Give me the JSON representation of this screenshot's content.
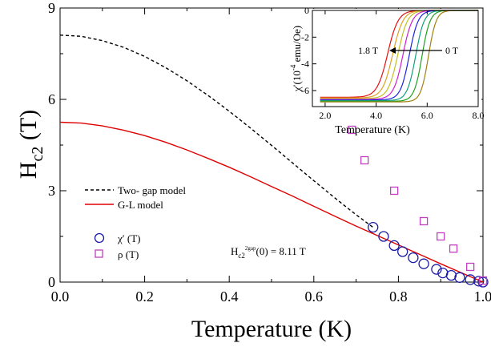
{
  "chart_data": [
    {
      "type": "scatter",
      "xlabel": "Temperature (K)",
      "ylabel_main": "H",
      "ylabel_sub": "c2",
      "ylabel_unit": " (T)",
      "xlim": [
        0.0,
        1.0
      ],
      "ylim": [
        0,
        9
      ],
      "xticks": [
        "0.0",
        "0.2",
        "0.4",
        "0.6",
        "0.8",
        "1.0"
      ],
      "xtick_values": [
        0.0,
        0.2,
        0.4,
        0.6,
        0.8,
        1.0
      ],
      "yticks": [
        "0",
        "3",
        "6",
        "9"
      ],
      "ytick_values": [
        0,
        3,
        6,
        9
      ],
      "legend": [
        {
          "label": "Two- gap model",
          "style": "dashed",
          "color": "#000000"
        },
        {
          "label": "G-L model",
          "style": "solid",
          "color": "#e00000"
        }
      ],
      "legend_markers": [
        {
          "label": "χ′ (T)",
          "marker": "circle",
          "color": "#1a1aa6"
        },
        {
          "label": "ρ (T)",
          "marker": "square",
          "color": "#c040c0"
        }
      ],
      "annotation": {
        "prefix": "H",
        "sub": "c2",
        "sup": "2gap",
        "suffix": "(0) = 8.11 T"
      },
      "series": [
        {
          "name": "Two- gap model",
          "style": "dashed",
          "x": [
            0.0,
            0.05,
            0.1,
            0.15,
            0.2,
            0.25,
            0.3,
            0.35,
            0.4,
            0.45,
            0.5,
            0.55,
            0.6,
            0.65,
            0.7,
            0.74
          ],
          "y": [
            8.11,
            8.07,
            7.93,
            7.71,
            7.41,
            7.04,
            6.61,
            6.13,
            5.61,
            5.06,
            4.49,
            3.91,
            3.33,
            2.76,
            2.21,
            1.8
          ]
        },
        {
          "name": "G-L model",
          "style": "solid",
          "x": [
            0.0,
            0.05,
            0.1,
            0.15,
            0.2,
            0.25,
            0.3,
            0.35,
            0.4,
            0.45,
            0.5,
            0.55,
            0.6,
            0.65,
            0.7,
            0.75,
            0.8,
            0.85,
            0.9,
            0.95,
            1.0
          ],
          "y": [
            5.25,
            5.22,
            5.13,
            4.99,
            4.81,
            4.59,
            4.34,
            4.06,
            3.77,
            3.46,
            3.14,
            2.82,
            2.49,
            2.16,
            1.84,
            1.53,
            1.22,
            0.91,
            0.6,
            0.3,
            0.0
          ]
        },
        {
          "name": "χ′ (T)",
          "marker": "circle",
          "x": [
            0.74,
            0.765,
            0.79,
            0.81,
            0.835,
            0.86,
            0.89,
            0.905,
            0.925,
            0.945,
            0.97,
            0.99,
            1.0
          ],
          "y": [
            1.8,
            1.5,
            1.2,
            1.0,
            0.8,
            0.6,
            0.42,
            0.3,
            0.22,
            0.15,
            0.08,
            0.03,
            0.0
          ]
        },
        {
          "name": "ρ (T)",
          "marker": "square",
          "x": [
            0.69,
            0.72,
            0.79,
            0.86,
            0.9,
            0.93,
            0.97,
            1.0
          ],
          "y": [
            5.0,
            4.0,
            3.0,
            2.0,
            1.5,
            1.1,
            0.5,
            0.05
          ]
        }
      ]
    },
    {
      "type": "line",
      "role": "inset",
      "xlabel": "Temperature (K)",
      "ylabel_pre": "χ′(10",
      "ylabel_exp": "-4",
      "ylabel_post": " emu/Oe)",
      "xlim": [
        1.5,
        8.0
      ],
      "ylim": [
        -7.2,
        0
      ],
      "xticks": [
        "2.0",
        "4.0",
        "6.0",
        "8.0"
      ],
      "xtick_values": [
        2.0,
        4.0,
        6.0,
        8.0
      ],
      "yticks": [
        "0",
        "-2",
        "-4",
        "-6"
      ],
      "ytick_values": [
        0,
        -2,
        -4,
        -6
      ],
      "annotations": {
        "left": "1.8 T",
        "right": "0 T"
      },
      "series": [
        {
          "color": "#e01010",
          "tc": 4.45,
          "width": 0.62,
          "ymin": -6.5
        },
        {
          "color": "#e0a020",
          "tc": 4.65,
          "width": 0.6,
          "ymin": -6.55
        },
        {
          "color": "#c0c020",
          "tc": 4.85,
          "width": 0.57,
          "ymin": -6.6
        },
        {
          "color": "#d020d0",
          "tc": 5.05,
          "width": 0.55,
          "ymin": -6.65
        },
        {
          "color": "#2020e0",
          "tc": 5.3,
          "width": 0.52,
          "ymin": -6.7
        },
        {
          "color": "#10a080",
          "tc": 5.55,
          "width": 0.5,
          "ymin": -6.75
        },
        {
          "color": "#20a020",
          "tc": 5.8,
          "width": 0.47,
          "ymin": -6.8
        },
        {
          "color": "#a08010",
          "tc": 6.05,
          "width": 0.45,
          "ymin": -6.85
        }
      ]
    }
  ]
}
